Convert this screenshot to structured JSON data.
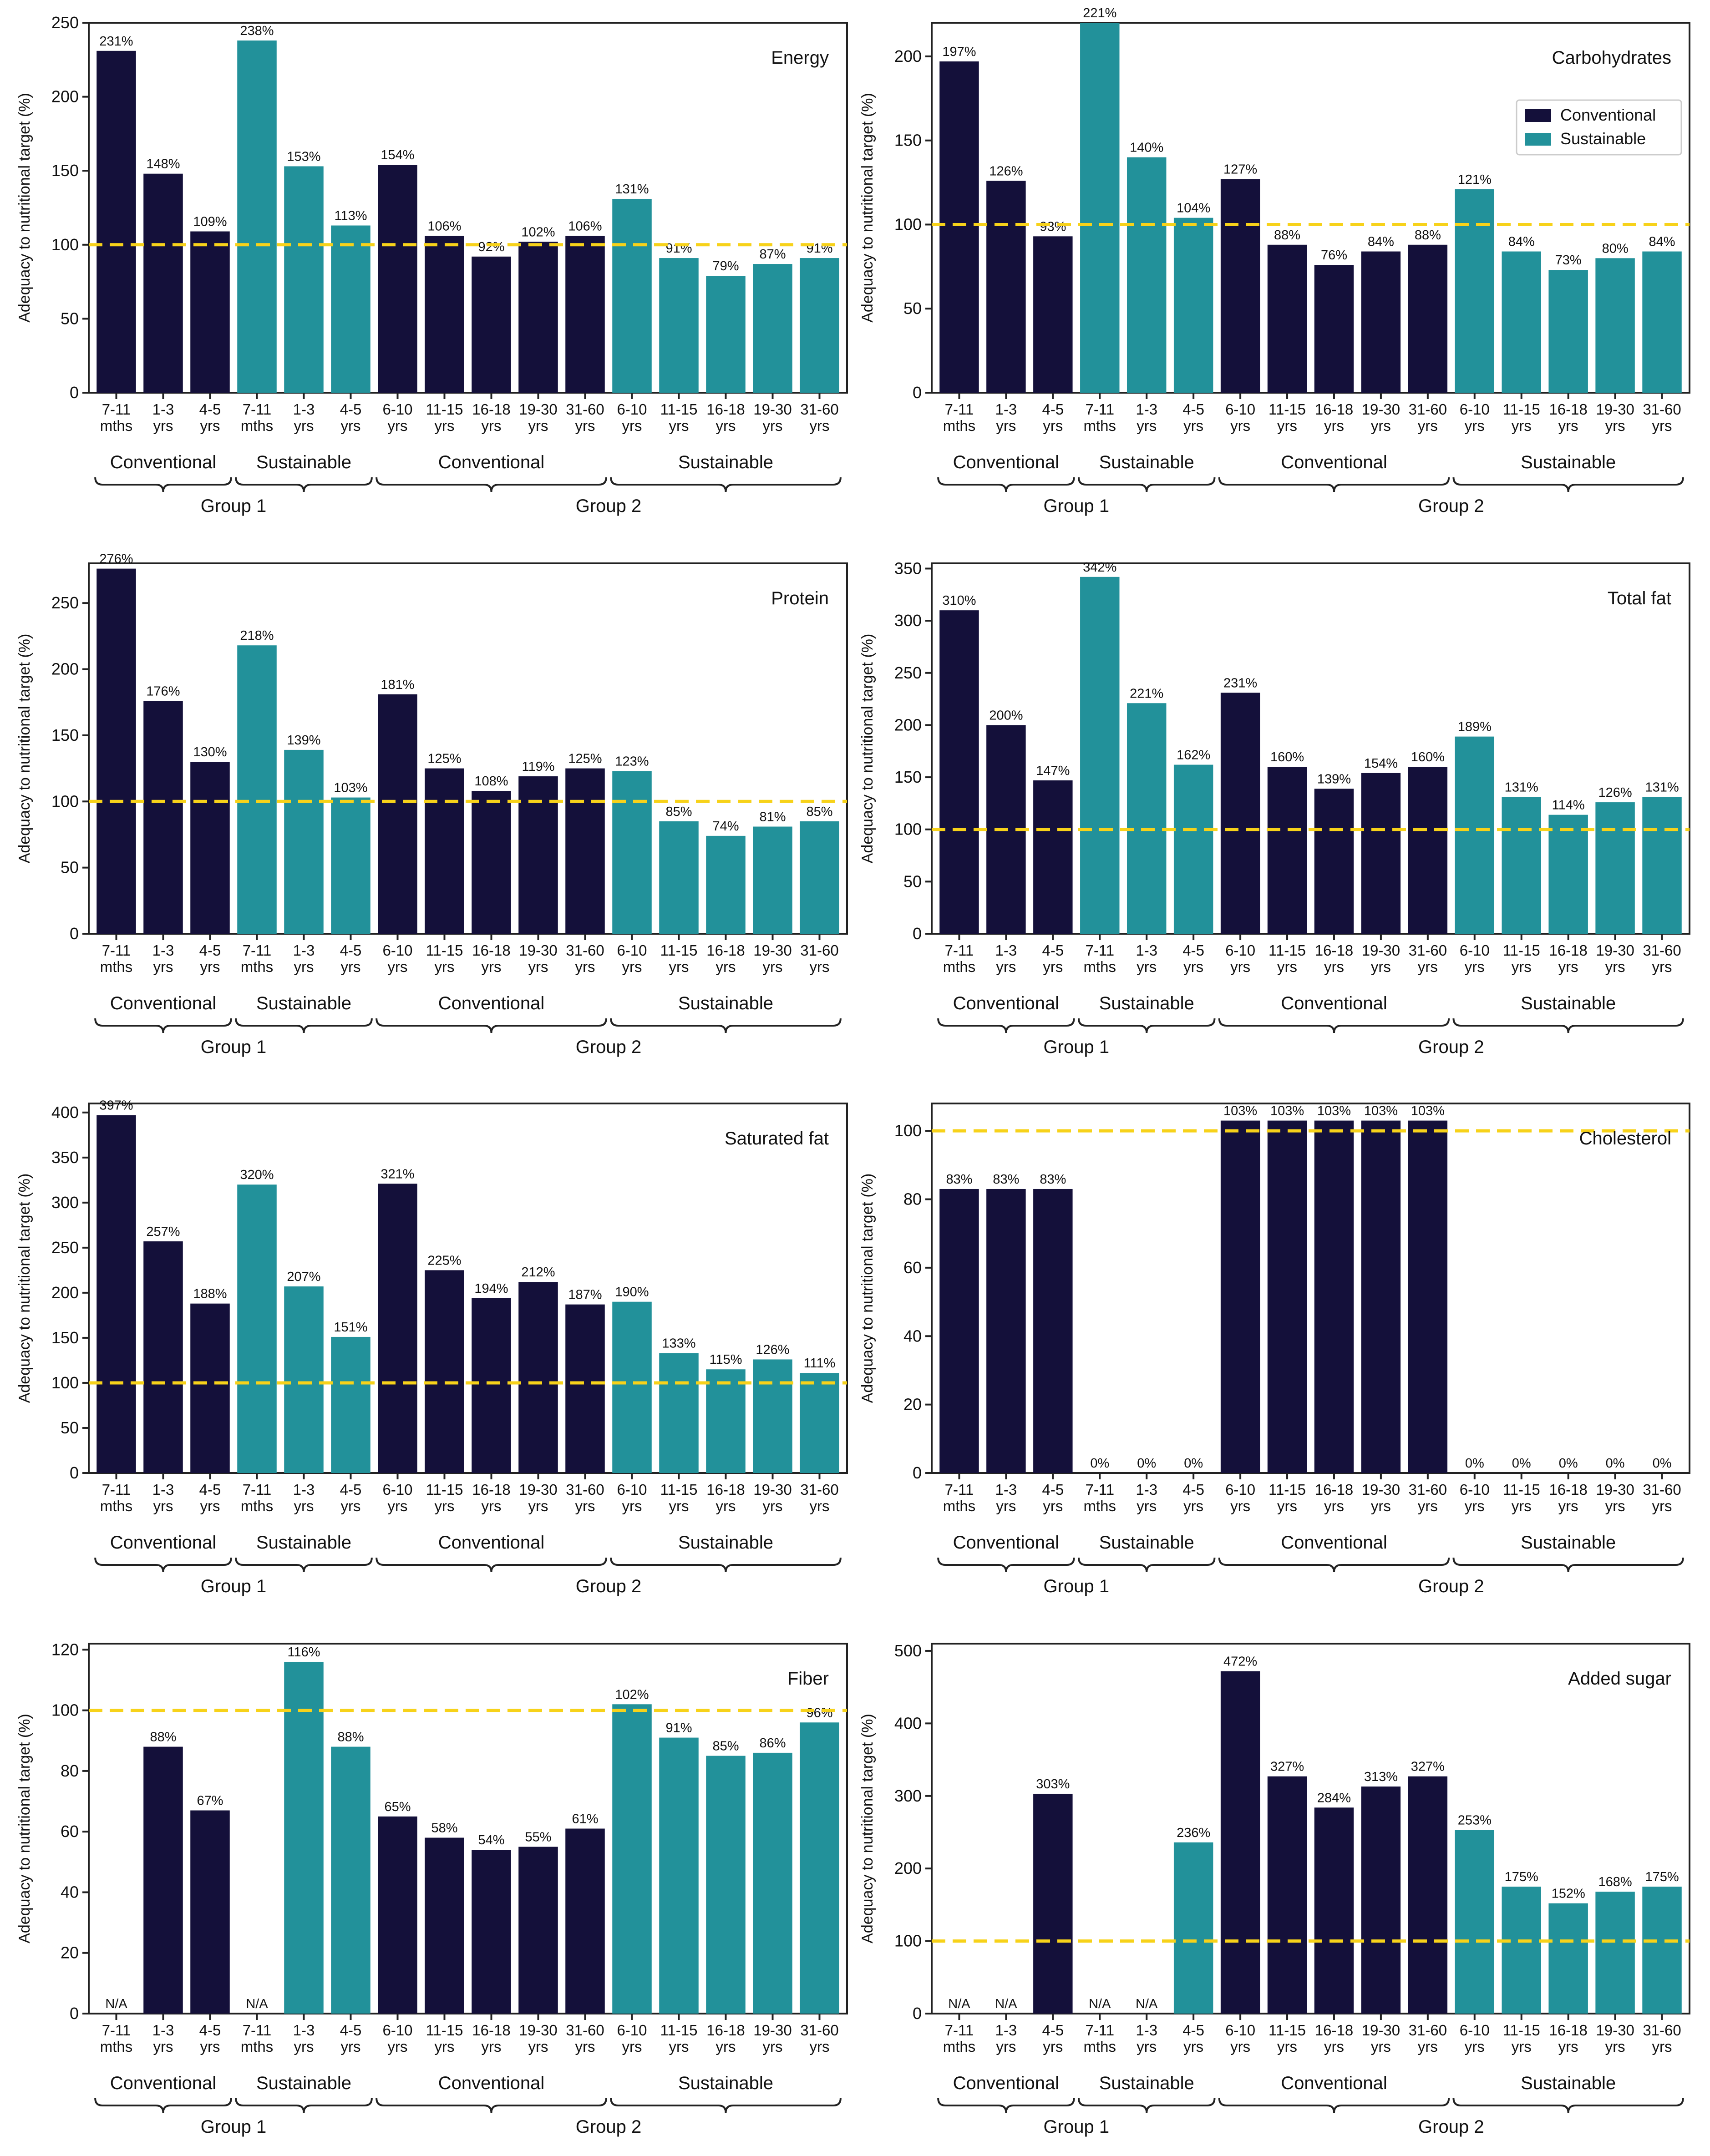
{
  "colors": {
    "conventional": "#14103a",
    "sustainable": "#22919a",
    "target_line": "#f7d21a",
    "axis": "#222222"
  },
  "y_axis_label": "Adequacy to nutritional target (%)",
  "legend": {
    "conventional_label": "Conventional",
    "sustainable_label": "Sustainable"
  },
  "x_ticks": [
    [
      "7-11",
      "mths"
    ],
    [
      "1-3",
      "yrs"
    ],
    [
      "4-5",
      "yrs"
    ],
    [
      "7-11",
      "mths"
    ],
    [
      "1-3",
      "yrs"
    ],
    [
      "4-5",
      "yrs"
    ],
    [
      "6-10",
      "yrs"
    ],
    [
      "11-15",
      "yrs"
    ],
    [
      "16-18",
      "yrs"
    ],
    [
      "19-30",
      "yrs"
    ],
    [
      "31-60",
      "yrs"
    ],
    [
      "6-10",
      "yrs"
    ],
    [
      "11-15",
      "yrs"
    ],
    [
      "16-18",
      "yrs"
    ],
    [
      "19-30",
      "yrs"
    ],
    [
      "31-60",
      "yrs"
    ]
  ],
  "diet_groups": [
    "Conventional",
    "Sustainable",
    "Conventional",
    "Sustainable"
  ],
  "age_groups": [
    "Group 1",
    "Group 2"
  ],
  "chart_data": [
    {
      "type": "bar",
      "title": "Energy",
      "ylim": [
        0,
        250
      ],
      "ticks": [
        0,
        50,
        100,
        150,
        200,
        250
      ],
      "target": 100,
      "values": [
        231,
        148,
        109,
        238,
        153,
        113,
        154,
        106,
        92,
        102,
        106,
        131,
        91,
        79,
        87,
        91
      ],
      "labels": [
        "231%",
        "148%",
        "109%",
        "238%",
        "153%",
        "113%",
        "154%",
        "106%",
        "92%",
        "102%",
        "106%",
        "131%",
        "91%",
        "79%",
        "87%",
        "91%"
      ]
    },
    {
      "type": "bar",
      "title": "Carbohydrates",
      "ylim": [
        0,
        220
      ],
      "ticks": [
        0,
        50,
        100,
        150,
        200
      ],
      "target": 100,
      "legend": true,
      "values": [
        197,
        126,
        93,
        221,
        140,
        104,
        127,
        88,
        76,
        84,
        88,
        121,
        84,
        73,
        80,
        84
      ],
      "labels": [
        "197%",
        "126%",
        "93%",
        "221%",
        "140%",
        "104%",
        "127%",
        "88%",
        "76%",
        "84%",
        "88%",
        "121%",
        "84%",
        "73%",
        "80%",
        "84%"
      ]
    },
    {
      "type": "bar",
      "title": "Protein",
      "ylim": [
        0,
        280
      ],
      "ticks": [
        0,
        50,
        100,
        150,
        200,
        250
      ],
      "target": 100,
      "values": [
        276,
        176,
        130,
        218,
        139,
        103,
        181,
        125,
        108,
        119,
        125,
        123,
        85,
        74,
        81,
        85
      ],
      "labels": [
        "276%",
        "176%",
        "130%",
        "218%",
        "139%",
        "103%",
        "181%",
        "125%",
        "108%",
        "119%",
        "125%",
        "123%",
        "85%",
        "74%",
        "81%",
        "85%"
      ]
    },
    {
      "type": "bar",
      "title": "Total fat",
      "ylim": [
        0,
        355
      ],
      "ticks": [
        0,
        50,
        100,
        150,
        200,
        250,
        300,
        350
      ],
      "target": 100,
      "values": [
        310,
        200,
        147,
        342,
        221,
        162,
        231,
        160,
        139,
        154,
        160,
        189,
        131,
        114,
        126,
        131
      ],
      "labels": [
        "310%",
        "200%",
        "147%",
        "342%",
        "221%",
        "162%",
        "231%",
        "160%",
        "139%",
        "154%",
        "160%",
        "189%",
        "131%",
        "114%",
        "126%",
        "131%"
      ]
    },
    {
      "type": "bar",
      "title": "Saturated fat",
      "ylim": [
        0,
        410
      ],
      "ticks": [
        0,
        50,
        100,
        150,
        200,
        250,
        300,
        350,
        400
      ],
      "target": 100,
      "values": [
        397,
        257,
        188,
        320,
        207,
        151,
        321,
        225,
        194,
        212,
        187,
        190,
        133,
        115,
        126,
        111
      ],
      "labels": [
        "397%",
        "257%",
        "188%",
        "320%",
        "207%",
        "151%",
        "321%",
        "225%",
        "194%",
        "212%",
        "187%",
        "190%",
        "133%",
        "115%",
        "126%",
        "111%"
      ]
    },
    {
      "type": "bar",
      "title": "Cholesterol",
      "ylim": [
        0,
        108
      ],
      "ticks": [
        0,
        20,
        40,
        60,
        80,
        100
      ],
      "target": 100,
      "values": [
        83,
        83,
        83,
        0,
        0,
        0,
        103,
        103,
        103,
        103,
        103,
        0,
        0,
        0,
        0,
        0
      ],
      "labels": [
        "83%",
        "83%",
        "83%",
        "0%",
        "0%",
        "0%",
        "103%",
        "103%",
        "103%",
        "103%",
        "103%",
        "0%",
        "0%",
        "0%",
        "0%",
        "0%"
      ]
    },
    {
      "type": "bar",
      "title": "Fiber",
      "ylim": [
        0,
        122
      ],
      "ticks": [
        0,
        20,
        40,
        60,
        80,
        100,
        120
      ],
      "target": 100,
      "values": [
        null,
        88,
        67,
        null,
        116,
        88,
        65,
        58,
        54,
        55,
        61,
        102,
        91,
        85,
        86,
        96
      ],
      "labels": [
        "N/A",
        "88%",
        "67%",
        "N/A",
        "116%",
        "88%",
        "65%",
        "58%",
        "54%",
        "55%",
        "61%",
        "102%",
        "91%",
        "85%",
        "86%",
        "96%"
      ]
    },
    {
      "type": "bar",
      "title": "Added sugar",
      "ylim": [
        0,
        510
      ],
      "ticks": [
        0,
        100,
        200,
        300,
        400,
        500
      ],
      "target": 100,
      "values": [
        null,
        null,
        303,
        null,
        null,
        236,
        472,
        327,
        284,
        313,
        327,
        253,
        175,
        152,
        168,
        175
      ],
      "labels": [
        "N/A",
        "N/A",
        "303%",
        "N/A",
        "N/A",
        "236%",
        "472%",
        "327%",
        "284%",
        "313%",
        "327%",
        "253%",
        "175%",
        "152%",
        "168%",
        "175%"
      ]
    }
  ]
}
